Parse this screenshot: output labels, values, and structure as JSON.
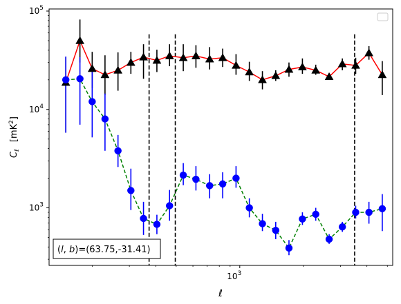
{
  "chart_data": {
    "type": "scatter",
    "xscale": "log",
    "yscale": "log",
    "xlim": [
      125,
      5300
    ],
    "ylim": [
      260,
      105000
    ],
    "xlabel": "ℓ",
    "ylabel_main": "C",
    "ylabel_sub": "ℓ",
    "ylabel_unit": "[mK",
    "ylabel_unit_sup": "2",
    "ylabel_unit_close": "]",
    "xticks": [
      {
        "value": 1000,
        "base": "10",
        "exp": "3"
      }
    ],
    "yticks": [
      {
        "value": 1000,
        "base": "10",
        "exp": "3"
      },
      {
        "value": 10000,
        "base": "10",
        "exp": "4"
      },
      {
        "value": 100000,
        "base": "10",
        "exp": "5"
      }
    ],
    "annotation": "(l, b)=(63.75,-31.41)",
    "annotation_parts": {
      "l": "l",
      "b": "b",
      "text": "=(63.75,-31.41)"
    },
    "legend": {
      "position": "top-right",
      "entries": []
    },
    "vlines": [
      372,
      495,
      3500
    ],
    "vline_ymax": 58000,
    "series": [
      {
        "marker": "triangle",
        "color": "#000000",
        "line_color": "#ff0000",
        "line_style": "solid",
        "x": [
          150,
          175,
          200,
          230,
          265,
          305,
          350,
          405,
          465,
          540,
          620,
          720,
          830,
          960,
          1110,
          1280,
          1480,
          1710,
          1980,
          2290,
          2650,
          3060,
          3540,
          4090,
          4730
        ],
        "y": [
          18800,
          50000,
          26000,
          22500,
          25000,
          30000,
          34000,
          31500,
          35000,
          33500,
          35000,
          32500,
          33500,
          28000,
          24000,
          20000,
          22000,
          25500,
          27000,
          25000,
          21500,
          29000,
          28000,
          37500,
          22500
        ],
        "yerr_low": [
          5800,
          30000,
          16500,
          14000,
          15500,
          23000,
          20500,
          24000,
          27500,
          24500,
          26500,
          25500,
          27000,
          22500,
          19500,
          16000,
          19500,
          21500,
          23000,
          22500,
          20500,
          25000,
          23000,
          32000,
          14000
        ],
        "yerr_high": [
          34000,
          82000,
          38500,
          35500,
          38000,
          38500,
          46000,
          40500,
          46000,
          46000,
          45000,
          43000,
          41500,
          36500,
          30500,
          24500,
          25000,
          30000,
          33000,
          28500,
          22500,
          33000,
          33500,
          44000,
          31000
        ]
      },
      {
        "marker": "circle",
        "color": "#0000ff",
        "line_color": "#008000",
        "line_style": "dashed",
        "x": [
          150,
          175,
          200,
          230,
          265,
          305,
          350,
          405,
          465,
          540,
          620,
          720,
          830,
          960,
          1110,
          1280,
          1480,
          1710,
          1980,
          2290,
          2650,
          3060,
          3540,
          4090,
          4730
        ],
        "y": [
          20000,
          20500,
          12000,
          8000,
          3800,
          1500,
          780,
          680,
          1050,
          2150,
          1950,
          1680,
          1750,
          2000,
          1000,
          690,
          590,
          390,
          770,
          860,
          480,
          640,
          900,
          900,
          980
        ],
        "yerr_low": [
          5800,
          7000,
          5200,
          3800,
          2600,
          950,
          530,
          540,
          740,
          1700,
          1500,
          1250,
          1250,
          1600,
          800,
          580,
          480,
          330,
          670,
          740,
          430,
          570,
          780,
          690,
          580
        ],
        "yerr_high": [
          34500,
          34000,
          25500,
          14500,
          5500,
          2500,
          1150,
          850,
          1520,
          2850,
          2650,
          2200,
          2300,
          2650,
          1250,
          870,
          720,
          470,
          900,
          1000,
          540,
          720,
          1050,
          1150,
          1380
        ]
      }
    ]
  }
}
